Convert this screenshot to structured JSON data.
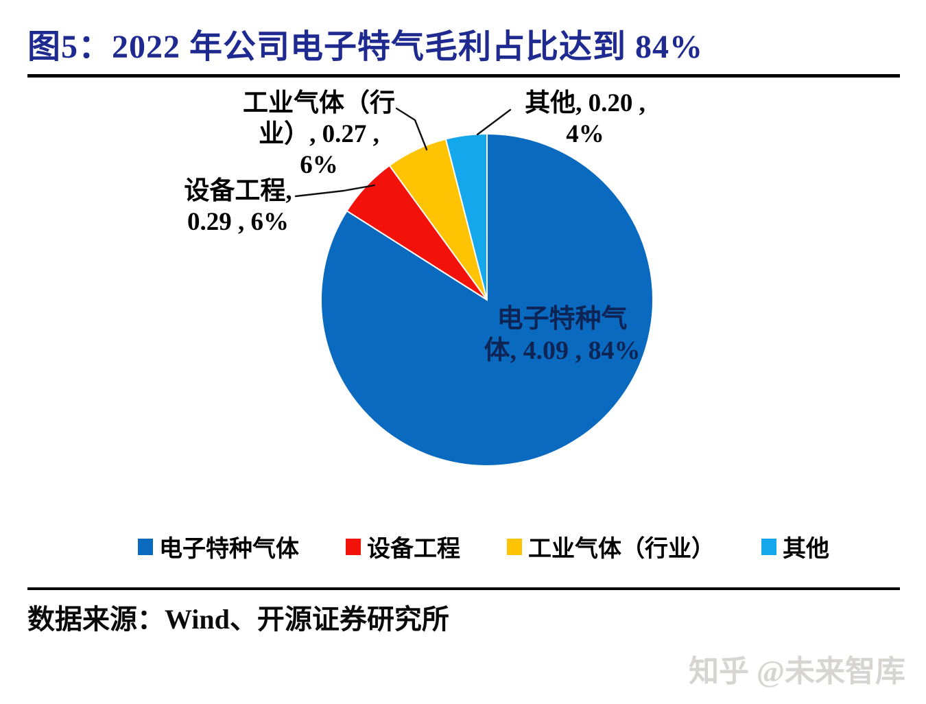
{
  "title": "图5：2022 年公司电子特气毛利占比达到 84%",
  "chart_data": {
    "type": "pie",
    "title": "图5：2022 年公司电子特气毛利占比达到 84%",
    "categories": [
      "电子特种气体",
      "设备工程",
      "工业气体（行业）",
      "其他"
    ],
    "values": [
      4.09,
      0.29,
      0.27,
      0.2
    ],
    "percents": [
      84,
      6,
      6,
      4
    ],
    "colors": [
      "#0A6ABF",
      "#F2120A",
      "#FEC303",
      "#14A7EC"
    ],
    "start_angle_deg": 0,
    "direction": "clockwise",
    "legend_position": "bottom",
    "data_labels": [
      "电子特种气体, 4.09 , 84%",
      "设备工程, 0.29 , 6%",
      "工业气体（行业）, 0.27 , 6%",
      "其他, 0.20 , 4%"
    ]
  },
  "callouts": {
    "main": {
      "lines": [
        "电子特种气",
        "体, 4.09 , 84%"
      ]
    },
    "equipment": {
      "lines": [
        "设备工程,",
        "0.29 , 6%"
      ]
    },
    "industrial": {
      "lines": [
        "工业气体（行",
        "业）, 0.27 ,",
        "6%"
      ]
    },
    "other": {
      "lines": [
        "其他, 0.20 ,",
        "4%"
      ]
    }
  },
  "source": "数据来源：Wind、开源证券研究所",
  "watermark": "知乎 @未来智库",
  "style": {
    "title_color": "#1E2A8F",
    "rule_color": "#050505",
    "callout_text_color": "#000000",
    "main_label_color": "#0E2455",
    "watermark_color": "#D7D5D2",
    "slice_border_color": "#FFFFFF"
  }
}
